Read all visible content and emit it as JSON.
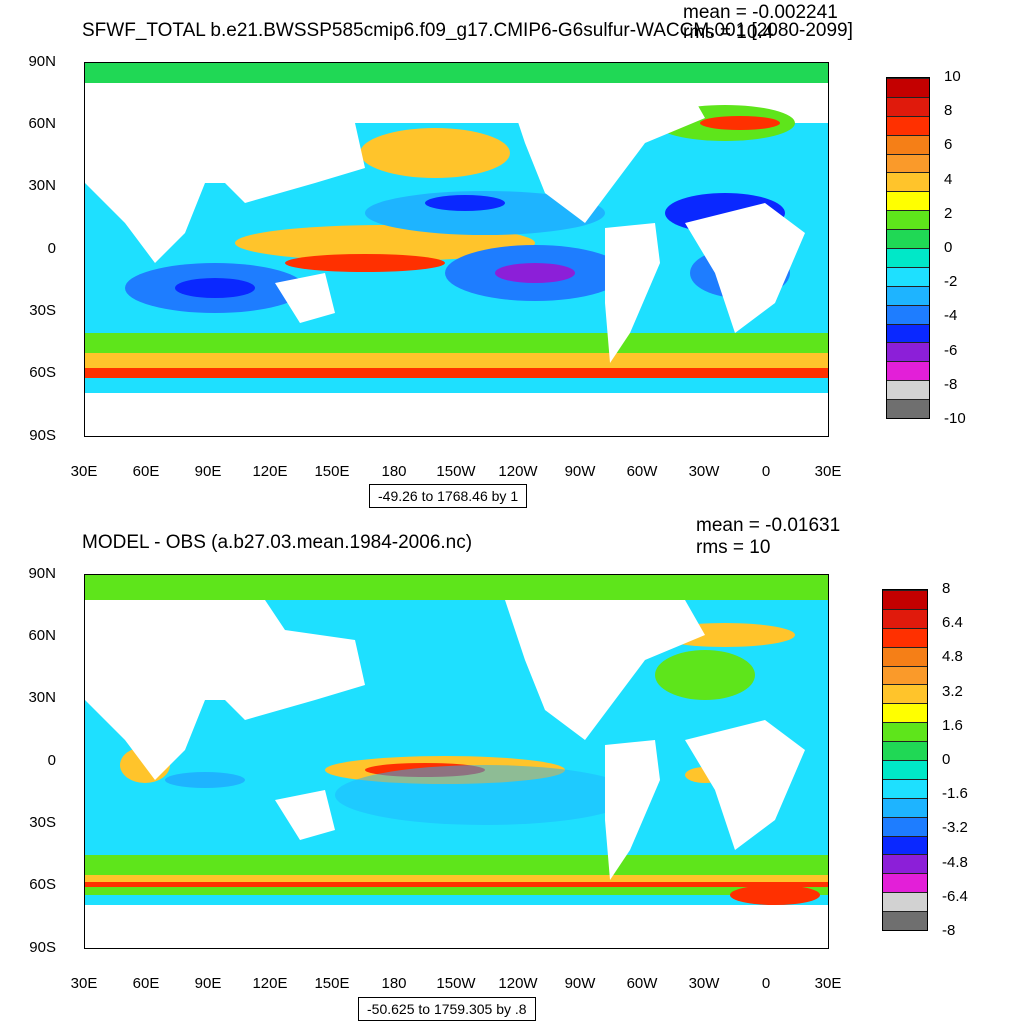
{
  "panels": [
    {
      "title": "SFWF_TOTAL b.e21.BWSSP585cmip6.f09_g17.CMIP6-G6sulfur-WACCM.001 [2080-2099]",
      "mean_text": "mean = -0.002241",
      "rms_text": "rms = 10.4",
      "range_text": "-49.26 to 1768.46 by 1",
      "colorbar_labels": [
        "10",
        "8",
        "6",
        "4",
        "2",
        "0",
        "-2",
        "-4",
        "-6",
        "-8",
        "-10"
      ]
    },
    {
      "title": "MODEL - OBS (a.b27.03.mean.1984-2006.nc)",
      "mean_text": "mean = -0.01631",
      "rms_text": "rms = 10",
      "range_text": "-50.625 to 1759.305 by .8",
      "colorbar_labels": [
        "8",
        "6.4",
        "4.8",
        "3.2",
        "1.6",
        "0",
        "-1.6",
        "-3.2",
        "-4.8",
        "-6.4",
        "-8"
      ]
    }
  ],
  "lat_labels": [
    "90N",
    "60N",
    "30N",
    "0",
    "30S",
    "60S",
    "90S"
  ],
  "lon_labels": [
    "30E",
    "60E",
    "90E",
    "120E",
    "150E",
    "180",
    "150W",
    "120W",
    "90W",
    "60W",
    "30W",
    "0",
    "30E"
  ],
  "palette": [
    "#c40000",
    "#e01a0c",
    "#ff3000",
    "#f57f17",
    "#fa9a2a",
    "#ffc42b",
    "#ffff00",
    "#5ee51b",
    "#20d855",
    "#00e8c8",
    "#1ee0ff",
    "#1eb4ff",
    "#1e7dff",
    "#0a28ff",
    "#8c1fd8",
    "#e31fd8",
    "#d2d2d2",
    "#6f6f6f"
  ]
}
